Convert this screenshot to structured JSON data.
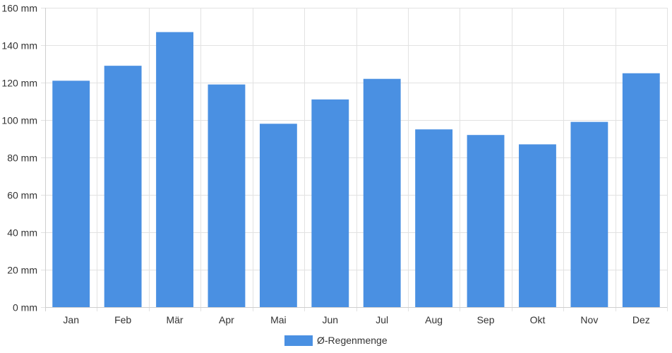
{
  "chart_data": {
    "type": "bar",
    "categories": [
      "Jan",
      "Feb",
      "Mär",
      "Apr",
      "Mai",
      "Jun",
      "Jul",
      "Aug",
      "Sep",
      "Okt",
      "Nov",
      "Dez"
    ],
    "series": [
      {
        "name": "Ø-Regenmenge",
        "color": "#4a90e2",
        "values": [
          121,
          129,
          147,
          119,
          98,
          111,
          122,
          95,
          92,
          87,
          99,
          125
        ]
      }
    ],
    "ylim": [
      0,
      160
    ],
    "yticks": [
      0,
      20,
      40,
      60,
      80,
      100,
      120,
      140,
      160
    ],
    "ytick_labels": [
      "0 mm",
      "20 mm",
      "40 mm",
      "60 mm",
      "80 mm",
      "100 mm",
      "120 mm",
      "140 mm",
      "160 mm"
    ],
    "grid": true,
    "legend_position": "bottom-center",
    "colors": {
      "grid": "#e2e2e2",
      "axis": "#cfcfcf",
      "text": "#333333"
    }
  }
}
